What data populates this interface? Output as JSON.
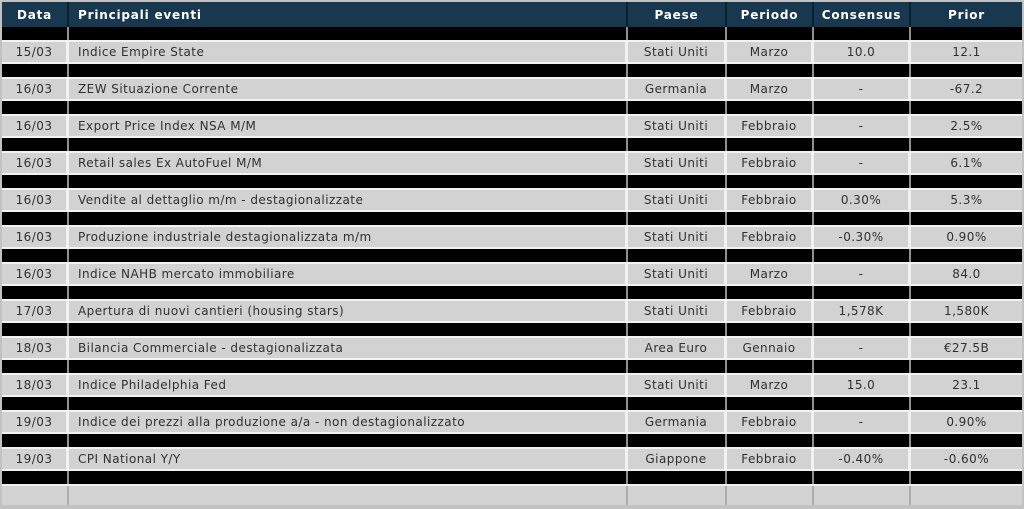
{
  "table": {
    "columns": [
      {
        "label": "Data"
      },
      {
        "label": "Principali eventi"
      },
      {
        "label": "Paese"
      },
      {
        "label": "Periodo"
      },
      {
        "label": "Consensus"
      },
      {
        "label": "Prior"
      }
    ],
    "rows": [
      {
        "data": "15/03",
        "evento": "Indice Empire State",
        "paese": "Stati Uniti",
        "periodo": "Marzo",
        "consensus": "10.0",
        "prior": "12.1"
      },
      {
        "data": "16/03",
        "evento": "ZEW Situazione Corrente",
        "paese": "Germania",
        "periodo": "Marzo",
        "consensus": "-",
        "prior": "-67.2"
      },
      {
        "data": "16/03",
        "evento": "Export Price Index NSA M/M",
        "paese": "Stati Uniti",
        "periodo": "Febbraio",
        "consensus": "-",
        "prior": "2.5%"
      },
      {
        "data": "16/03",
        "evento": "Retail sales Ex AutoFuel M/M",
        "paese": "Stati Uniti",
        "periodo": "Febbraio",
        "consensus": "-",
        "prior": "6.1%"
      },
      {
        "data": "16/03",
        "evento": "Vendite al dettaglio m/m - destagionalizzate",
        "paese": "Stati Uniti",
        "periodo": "Febbraio",
        "consensus": "0.30%",
        "prior": "5.3%"
      },
      {
        "data": "16/03",
        "evento": "Produzione industriale destagionalizzata m/m",
        "paese": "Stati Uniti",
        "periodo": "Febbraio",
        "consensus": "-0.30%",
        "prior": "0.90%"
      },
      {
        "data": "16/03",
        "evento": "Indice NAHB mercato immobiliare",
        "paese": "Stati Uniti",
        "periodo": "Marzo",
        "consensus": "-",
        "prior": "84.0"
      },
      {
        "data": "17/03",
        "evento": "Apertura di nuovi cantieri (housing stars)",
        "paese": "Stati Uniti",
        "periodo": "Febbraio",
        "consensus": "1,578K",
        "prior": "1,580K"
      },
      {
        "data": "18/03",
        "evento": "Bilancia Commerciale - destagionalizzata",
        "paese": "Area Euro",
        "periodo": "Gennaio",
        "consensus": "-",
        "prior": "€27.5B"
      },
      {
        "data": "18/03",
        "evento": "Indice Philadelphia Fed",
        "paese": "Stati Uniti",
        "periodo": "Marzo",
        "consensus": "15.0",
        "prior": "23.1"
      },
      {
        "data": "19/03",
        "evento": "Indice dei prezzi alla produzione a/a -  non destagionalizzato",
        "paese": "Germania",
        "periodo": "Febbraio",
        "consensus": "-",
        "prior": "0.90%"
      },
      {
        "data": "19/03",
        "evento": "CPI National Y/Y",
        "paese": "Giappone",
        "periodo": "Febbraio",
        "consensus": "-0.40%",
        "prior": "-0.60%"
      }
    ],
    "colors": {
      "header_bg": "#17384F",
      "header_text": "#FFFFFF",
      "separator_row_bg": "#000000",
      "data_row_bg": "#D2D2D2",
      "data_row_text": "#303030",
      "frame_border": "#C2C2C2"
    }
  }
}
